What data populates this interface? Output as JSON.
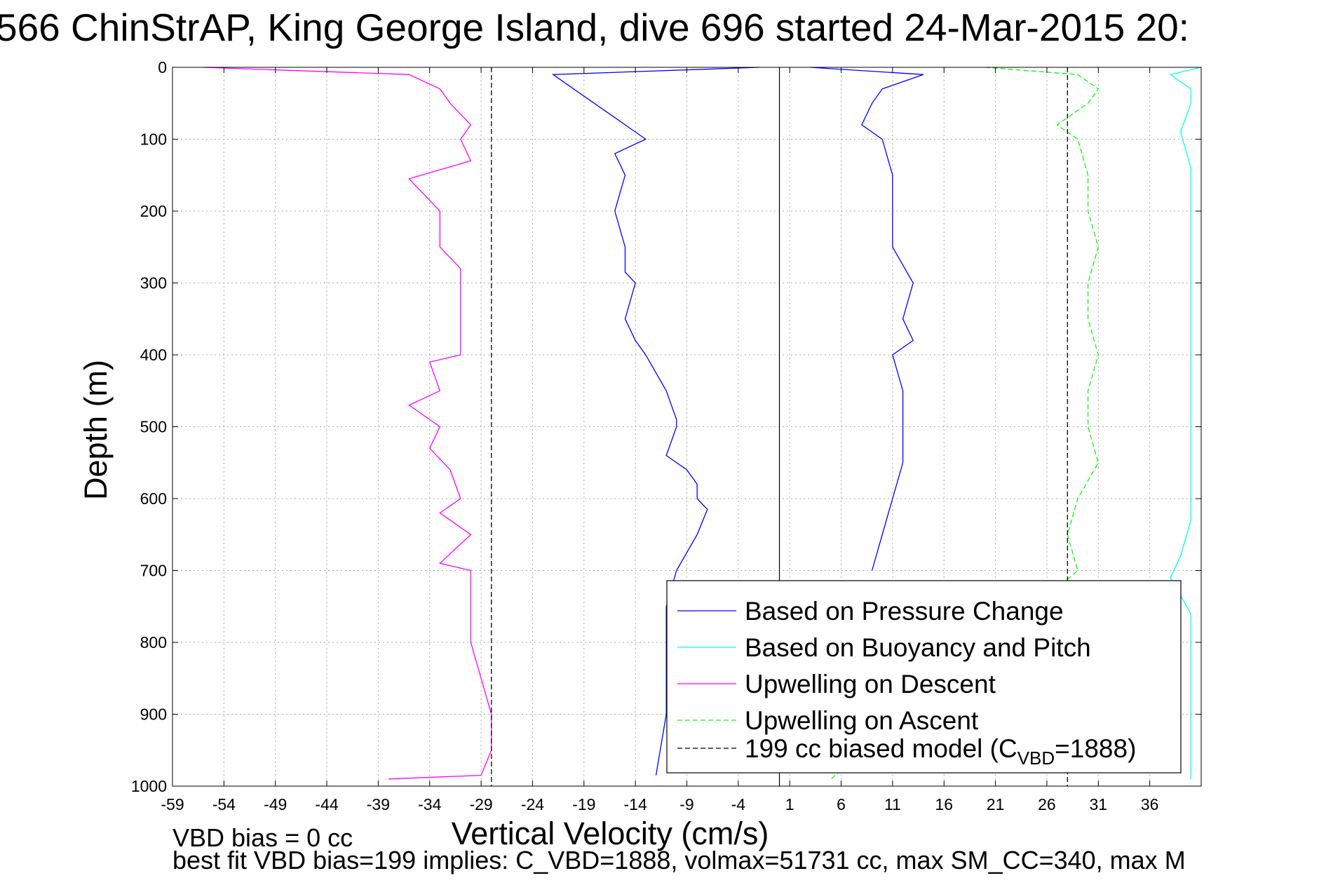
{
  "chart_data": {
    "type": "line",
    "title": "566 ChinStrAP, King George Island, dive 696 started 24-Mar-2015 20:",
    "xlabel": "Vertical Velocity (cm/s)",
    "ylabel": "Depth (m)",
    "xlim": [
      -59,
      41
    ],
    "ylim": [
      0,
      1000
    ],
    "y_reversed": true,
    "grid": true,
    "x_ticks": [
      -59,
      -54,
      -49,
      -44,
      -39,
      -34,
      -29,
      -24,
      -19,
      -14,
      -9,
      -4,
      1,
      6,
      11,
      16,
      21,
      26,
      31,
      36
    ],
    "y_ticks": [
      0,
      100,
      200,
      300,
      400,
      500,
      600,
      700,
      800,
      900,
      1000
    ],
    "legend_position": "bottom-right",
    "series": [
      {
        "name": "Based on Pressure Change",
        "color": "#0000ff",
        "style": "solid",
        "depth": [
          0,
          10,
          30,
          50,
          80,
          100,
          120,
          150,
          200,
          250,
          285,
          300,
          350,
          380,
          400,
          450,
          490,
          500,
          540,
          560,
          580,
          600,
          615,
          650,
          700,
          750,
          800,
          850,
          900,
          985
        ],
        "values": [
          -2,
          -22,
          -20,
          -18,
          -15,
          -13,
          -16,
          -15,
          -16,
          -15,
          -15,
          -14,
          -15,
          -14,
          -13,
          -11,
          -10,
          -10,
          -11,
          -9,
          -8,
          -8,
          -7,
          -8,
          -10,
          -11,
          -11,
          -11,
          -11,
          -12
        ]
      },
      {
        "name": "Based on Pressure Change",
        "color": "#0000ff",
        "style": "solid",
        "depth": [
          0,
          10,
          30,
          50,
          80,
          100,
          150,
          200,
          250,
          300,
          350,
          380,
          400,
          450,
          500,
          550,
          600,
          650,
          700
        ],
        "values": [
          3,
          14,
          10,
          9,
          8,
          10,
          11,
          11,
          11,
          13,
          12,
          13,
          11,
          12,
          12,
          12,
          11,
          10,
          9
        ]
      },
      {
        "name": "Based on Buoyancy and Pitch",
        "color": "#00ffff",
        "style": "solid",
        "depth": [
          0,
          10,
          30,
          50,
          90,
          140,
          630,
          680,
          710,
          760,
          800,
          850,
          900,
          990
        ],
        "values": [
          41,
          38,
          40,
          40,
          39,
          40,
          40,
          39,
          38,
          40,
          40,
          40,
          40,
          40
        ]
      },
      {
        "name": "Upwelling on Descent",
        "color": "#ff00ff",
        "style": "solid",
        "depth": [
          0,
          10,
          30,
          50,
          80,
          100,
          130,
          155,
          200,
          250,
          280,
          300,
          350,
          380,
          400,
          410,
          450,
          470,
          500,
          530,
          560,
          600,
          620,
          650,
          690,
          700,
          750,
          800,
          850,
          900,
          950,
          985,
          990
        ],
        "values": [
          -56,
          -36,
          -33,
          -32,
          -30,
          -31,
          -30,
          -36,
          -33,
          -33,
          -31,
          -31,
          -31,
          -31,
          -31,
          -34,
          -33,
          -36,
          -33,
          -34,
          -32,
          -31,
          -33,
          -30,
          -33,
          -30,
          -30,
          -30,
          -29,
          -28,
          -28,
          -29,
          -38
        ]
      },
      {
        "name": "Upwelling on Ascent",
        "color": "#00ff00",
        "style": "dashed",
        "depth": [
          0,
          10,
          30,
          50,
          80,
          100,
          150,
          200,
          250,
          300,
          350,
          400,
          450,
          500,
          550,
          600,
          650,
          700,
          990
        ],
        "values": [
          20,
          29,
          31,
          30,
          27,
          29,
          30,
          30,
          31,
          30,
          30,
          31,
          30,
          30,
          31,
          29,
          28,
          29,
          5
        ]
      },
      {
        "name": "199 cc biased model (C_VBD=1888)",
        "color": "#000000",
        "style": "dashed",
        "depth": [
          0,
          1000
        ],
        "values": [
          -28,
          -28
        ]
      },
      {
        "name": "199 cc biased model (C_VBD=1888)",
        "color": "#000000",
        "style": "dashed",
        "depth": [
          0,
          1000
        ],
        "values": [
          28,
          28
        ]
      }
    ],
    "reference_lines": [
      {
        "x": 0,
        "color": "#000000",
        "style": "solid"
      }
    ],
    "legend": [
      {
        "label": "Based on Pressure Change",
        "color": "#0000ff",
        "style": "solid"
      },
      {
        "label": "Based on Buoyancy and Pitch",
        "color": "#00ffff",
        "style": "solid"
      },
      {
        "label": "Upwelling on Descent",
        "color": "#ff00ff",
        "style": "solid"
      },
      {
        "label": "Upwelling on Ascent",
        "color": "#00ff00",
        "style": "dashed"
      },
      {
        "label": "199 cc biased model (C",
        "sub": "VBD",
        "suffix": "=1888)",
        "color": "#000000",
        "style": "dashed"
      }
    ],
    "annotations": [
      "VBD bias = 0 cc",
      "best fit VBD bias=199 implies: C_VBD=1888, volmax=51731 cc, max SM_CC=340, max M"
    ]
  }
}
